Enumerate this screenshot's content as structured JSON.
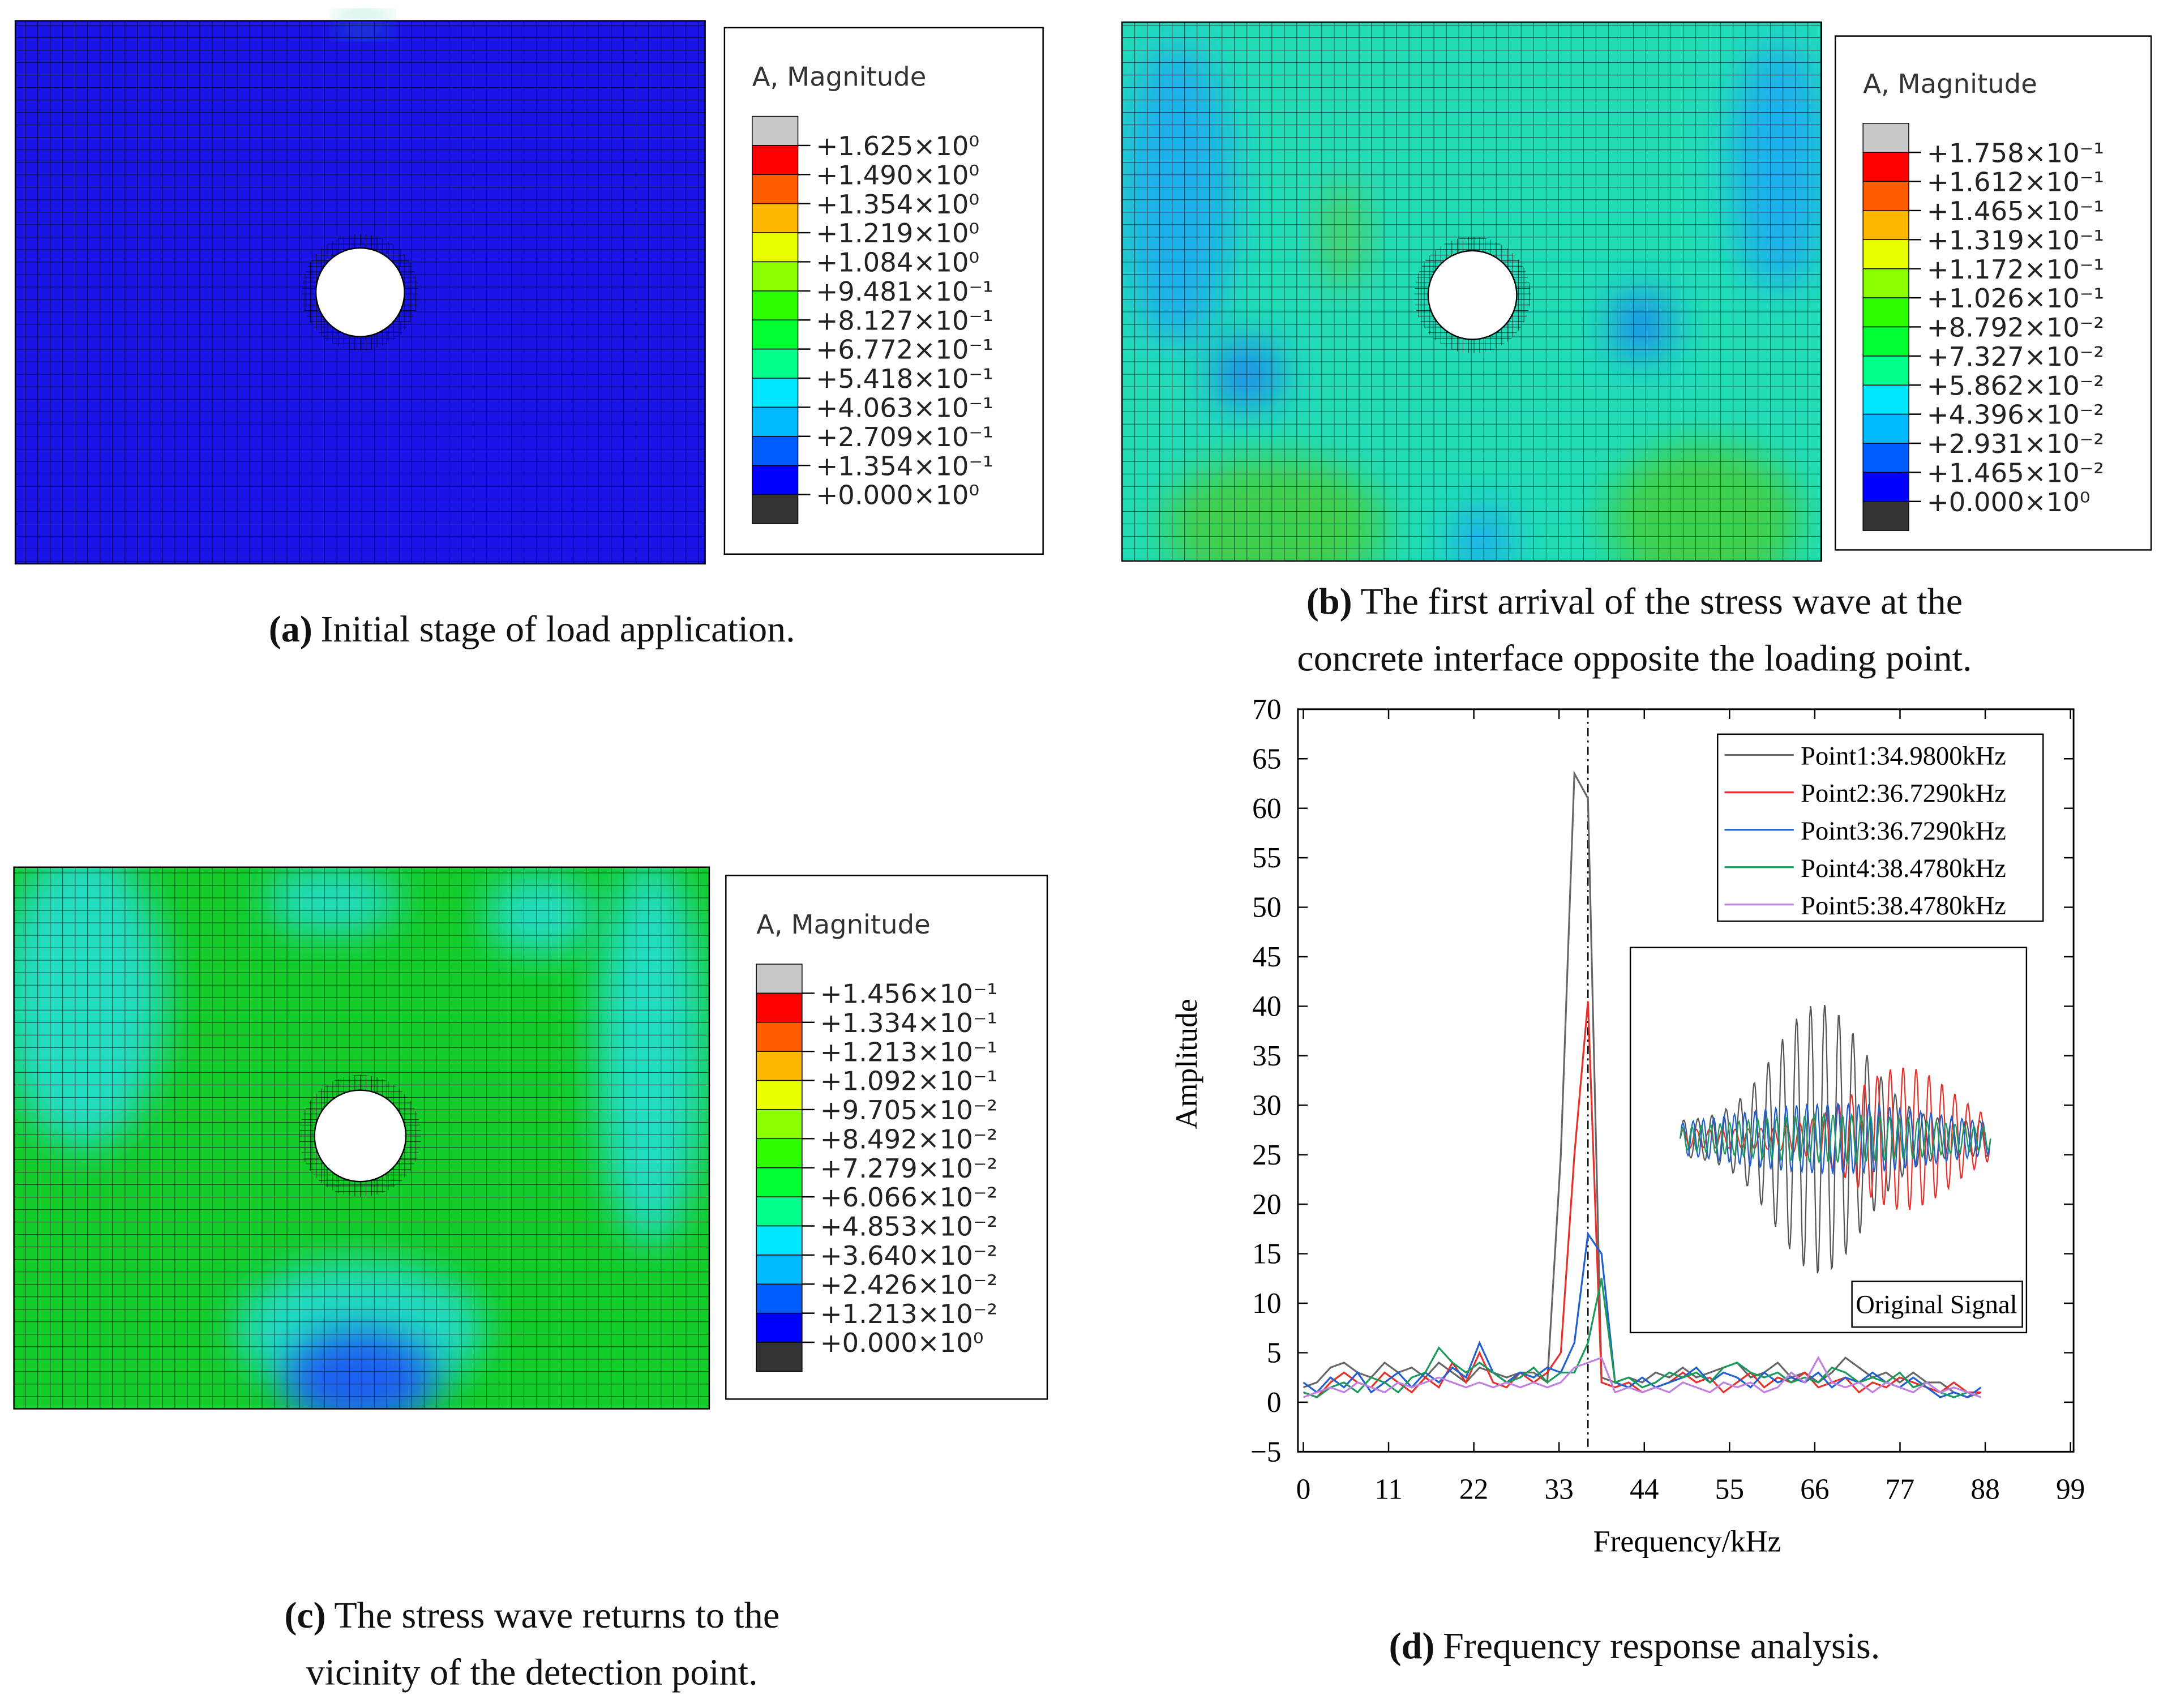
{
  "contour_colors": [
    "#c8c8c8",
    "#ff0000",
    "#ff5d00",
    "#ffb900",
    "#e8ff00",
    "#8bff00",
    "#2eff00",
    "#00ff2e",
    "#00ff8b",
    "#00e8ff",
    "#00b9ff",
    "#005dff",
    "#0000ff",
    "#333333"
  ],
  "panels": [
    {
      "legend_title": "A, Magnitude",
      "levels": [
        "+1.625×10⁰",
        "+1.490×10⁰",
        "+1.354×10⁰",
        "+1.219×10⁰",
        "+1.084×10⁰",
        "+9.481×10⁻¹",
        "+8.127×10⁻¹",
        "+6.772×10⁻¹",
        "+5.418×10⁻¹",
        "+4.063×10⁻¹",
        "+2.709×10⁻¹",
        "+1.354×10⁻¹",
        "+0.000×10⁰"
      ],
      "caption": {
        "label": "(a)",
        "lines": [
          "Initial stage of load application."
        ]
      }
    },
    {
      "legend_title": "A, Magnitude",
      "levels": [
        "+1.758×10⁻¹",
        "+1.612×10⁻¹",
        "+1.465×10⁻¹",
        "+1.319×10⁻¹",
        "+1.172×10⁻¹",
        "+1.026×10⁻¹",
        "+8.792×10⁻²",
        "+7.327×10⁻²",
        "+5.862×10⁻²",
        "+4.396×10⁻²",
        "+2.931×10⁻²",
        "+1.465×10⁻²",
        "+0.000×10⁰"
      ],
      "caption": {
        "label": "(b)",
        "lines": [
          "The first arrival of the stress wave at the",
          "concrete interface opposite the loading point."
        ]
      }
    },
    {
      "legend_title": "A, Magnitude",
      "levels": [
        "+1.456×10⁻¹",
        "+1.334×10⁻¹",
        "+1.213×10⁻¹",
        "+1.092×10⁻¹",
        "+9.705×10⁻²",
        "+8.492×10⁻²",
        "+7.279×10⁻²",
        "+6.066×10⁻²",
        "+4.853×10⁻²",
        "+3.640×10⁻²",
        "+2.426×10⁻²",
        "+1.213×10⁻²",
        "+0.000×10⁰"
      ],
      "caption": {
        "label": "(c)",
        "lines": [
          "The stress wave returns to the",
          "vicinity of the detection point."
        ]
      }
    }
  ],
  "chart_data": {
    "type": "line",
    "x_label": "Frequency/kHz",
    "y_label": "Amplitude",
    "xlim": [
      -0.7,
      99.4
    ],
    "xticks": [
      0,
      11,
      22,
      33,
      44,
      55,
      66,
      77,
      88,
      99
    ],
    "ylim": [
      -5,
      70
    ],
    "yticks": [
      {
        "value": -5,
        "label": "−5"
      },
      0,
      5,
      10,
      15,
      20,
      25,
      30,
      35,
      40,
      45,
      50,
      55,
      60,
      65,
      70
    ],
    "grid": false,
    "legend": "upper right",
    "inset_label": "Original Signal",
    "x": [
      0,
      1.75,
      3.5,
      5.25,
      7,
      8.75,
      10.49,
      12.24,
      13.99,
      15.74,
      17.49,
      19.24,
      20.99,
      22.74,
      24.49,
      26.24,
      27.98,
      29.73,
      31.48,
      33.23,
      34.98,
      36.73,
      38.48,
      40.23,
      41.98,
      43.73,
      45.47,
      47.22,
      48.97,
      50.72,
      52.47,
      54.22,
      55.97,
      57.72,
      59.47,
      61.22,
      62.96,
      64.71,
      66.46,
      68.21,
      69.96,
      71.71,
      73.46,
      75.21,
      76.96,
      78.71,
      80.45,
      82.2,
      83.95,
      85.7,
      87.45
    ],
    "series": [
      {
        "name": "Point1:34.9800kHz",
        "color": "#666666",
        "values": [
          1.5,
          2,
          3.5,
          4,
          3,
          2.5,
          4,
          3,
          3.5,
          2.5,
          4,
          3,
          2,
          3.5,
          3,
          2.5,
          3,
          3,
          2,
          25,
          63.5,
          61,
          2.5,
          2,
          2.5,
          2,
          3,
          2.5,
          3.5,
          2.5,
          3,
          3.5,
          4,
          2.5,
          3,
          4,
          2.5,
          3,
          2,
          3,
          4.5,
          3.5,
          2.5,
          3,
          2,
          3,
          2,
          2,
          1,
          0.5,
          1
        ]
      },
      {
        "name": "Point2:36.7290kHz",
        "color": "#e8302a",
        "values": [
          1,
          0.5,
          2,
          3,
          2,
          1.5,
          3,
          2,
          1,
          2.5,
          1.5,
          4,
          2,
          5,
          2,
          1.5,
          3,
          2,
          3,
          5,
          25,
          40.5,
          2,
          1.5,
          2,
          1,
          1.5,
          2,
          3,
          2,
          2.5,
          1,
          2,
          3,
          1.5,
          2.5,
          2,
          3,
          1.5,
          2,
          2.5,
          1,
          2,
          1.5,
          2.5,
          2,
          1.5,
          1,
          2,
          1,
          1
        ]
      },
      {
        "name": "Point3:36.7290kHz",
        "color": "#1f5fd0",
        "values": [
          2,
          1,
          2.5,
          1.5,
          3,
          1,
          2,
          3,
          1.5,
          3,
          2,
          3.5,
          2.5,
          6,
          3,
          2,
          3,
          2.5,
          3.5,
          3,
          6,
          17,
          15,
          2,
          1.5,
          2.5,
          1.5,
          2,
          2.5,
          3.5,
          2,
          3,
          2.5,
          1.5,
          3,
          2,
          2.5,
          2,
          3,
          1.5,
          2.5,
          2,
          3,
          2,
          1.5,
          2.5,
          1.5,
          0.5,
          1,
          0.5,
          1.5
        ]
      },
      {
        "name": "Point4:38.4780kHz",
        "color": "#1a9a5a",
        "values": [
          1,
          0.5,
          1.5,
          2,
          1,
          2.5,
          2,
          1,
          2.5,
          3,
          5.5,
          4,
          3,
          4,
          3,
          2,
          2.5,
          3.5,
          2,
          3,
          3,
          6,
          12.5,
          2,
          2.5,
          1.5,
          2,
          3,
          2.5,
          3,
          2,
          3.5,
          4,
          3,
          2.5,
          3,
          2,
          2.5,
          2,
          3.5,
          3,
          2,
          2.5,
          2,
          3,
          1.5,
          2,
          1,
          0.5,
          1,
          0.5
        ]
      },
      {
        "name": "Point5:38.4780kHz",
        "color": "#c080e0",
        "values": [
          0.5,
          1,
          1.5,
          1,
          2,
          1.5,
          1,
          2,
          1.5,
          2,
          2.5,
          2,
          1.5,
          2,
          1.5,
          2,
          1.5,
          2,
          1.5,
          2,
          3.5,
          4,
          4.5,
          1,
          1.5,
          1,
          1.5,
          1,
          2,
          1.5,
          1,
          2,
          1.5,
          2,
          1,
          1.5,
          3,
          2,
          4.5,
          2,
          1.5,
          2,
          1,
          2,
          1.5,
          1,
          2,
          1,
          1.5,
          1,
          0.5
        ]
      }
    ],
    "caption": {
      "label": "(d)",
      "lines": [
        "Frequency response analysis."
      ]
    }
  }
}
